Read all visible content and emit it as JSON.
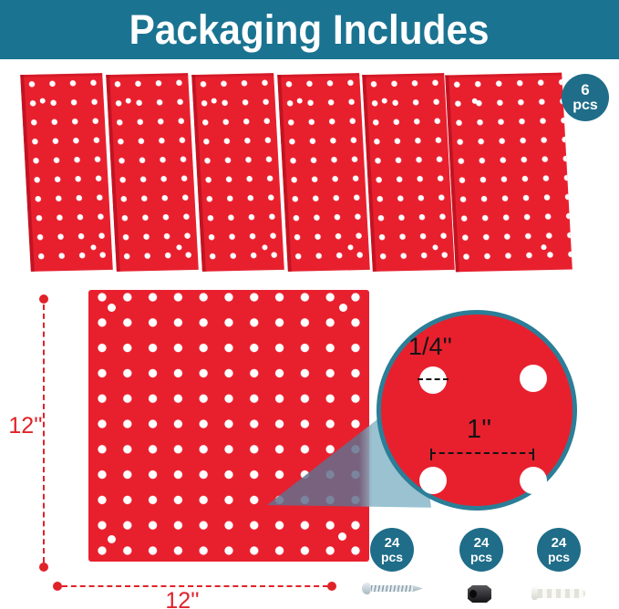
{
  "header": {
    "title": "Packaging Includes"
  },
  "panels_section": {
    "panel_count": 6,
    "badge": {
      "count": "6",
      "unit": "pcs"
    }
  },
  "main_board": {
    "height_label": "12''",
    "width_label": "12''"
  },
  "detail_view": {
    "hole_diameter_label": "1/4''",
    "hole_spacing_label": "1''"
  },
  "hardware_items": [
    {
      "name": "screw",
      "count": "24",
      "unit": "pcs"
    },
    {
      "name": "hex-spacer",
      "count": "24",
      "unit": "pcs"
    },
    {
      "name": "wall-anchor",
      "count": "24",
      "unit": "pcs"
    }
  ],
  "colors": {
    "banner_teal": "#1a7391",
    "badge_teal": "#1f6d89",
    "board_red": "#e8202e",
    "measure_red": "#e02229",
    "detail_ring_teal": "#2b7e97"
  }
}
